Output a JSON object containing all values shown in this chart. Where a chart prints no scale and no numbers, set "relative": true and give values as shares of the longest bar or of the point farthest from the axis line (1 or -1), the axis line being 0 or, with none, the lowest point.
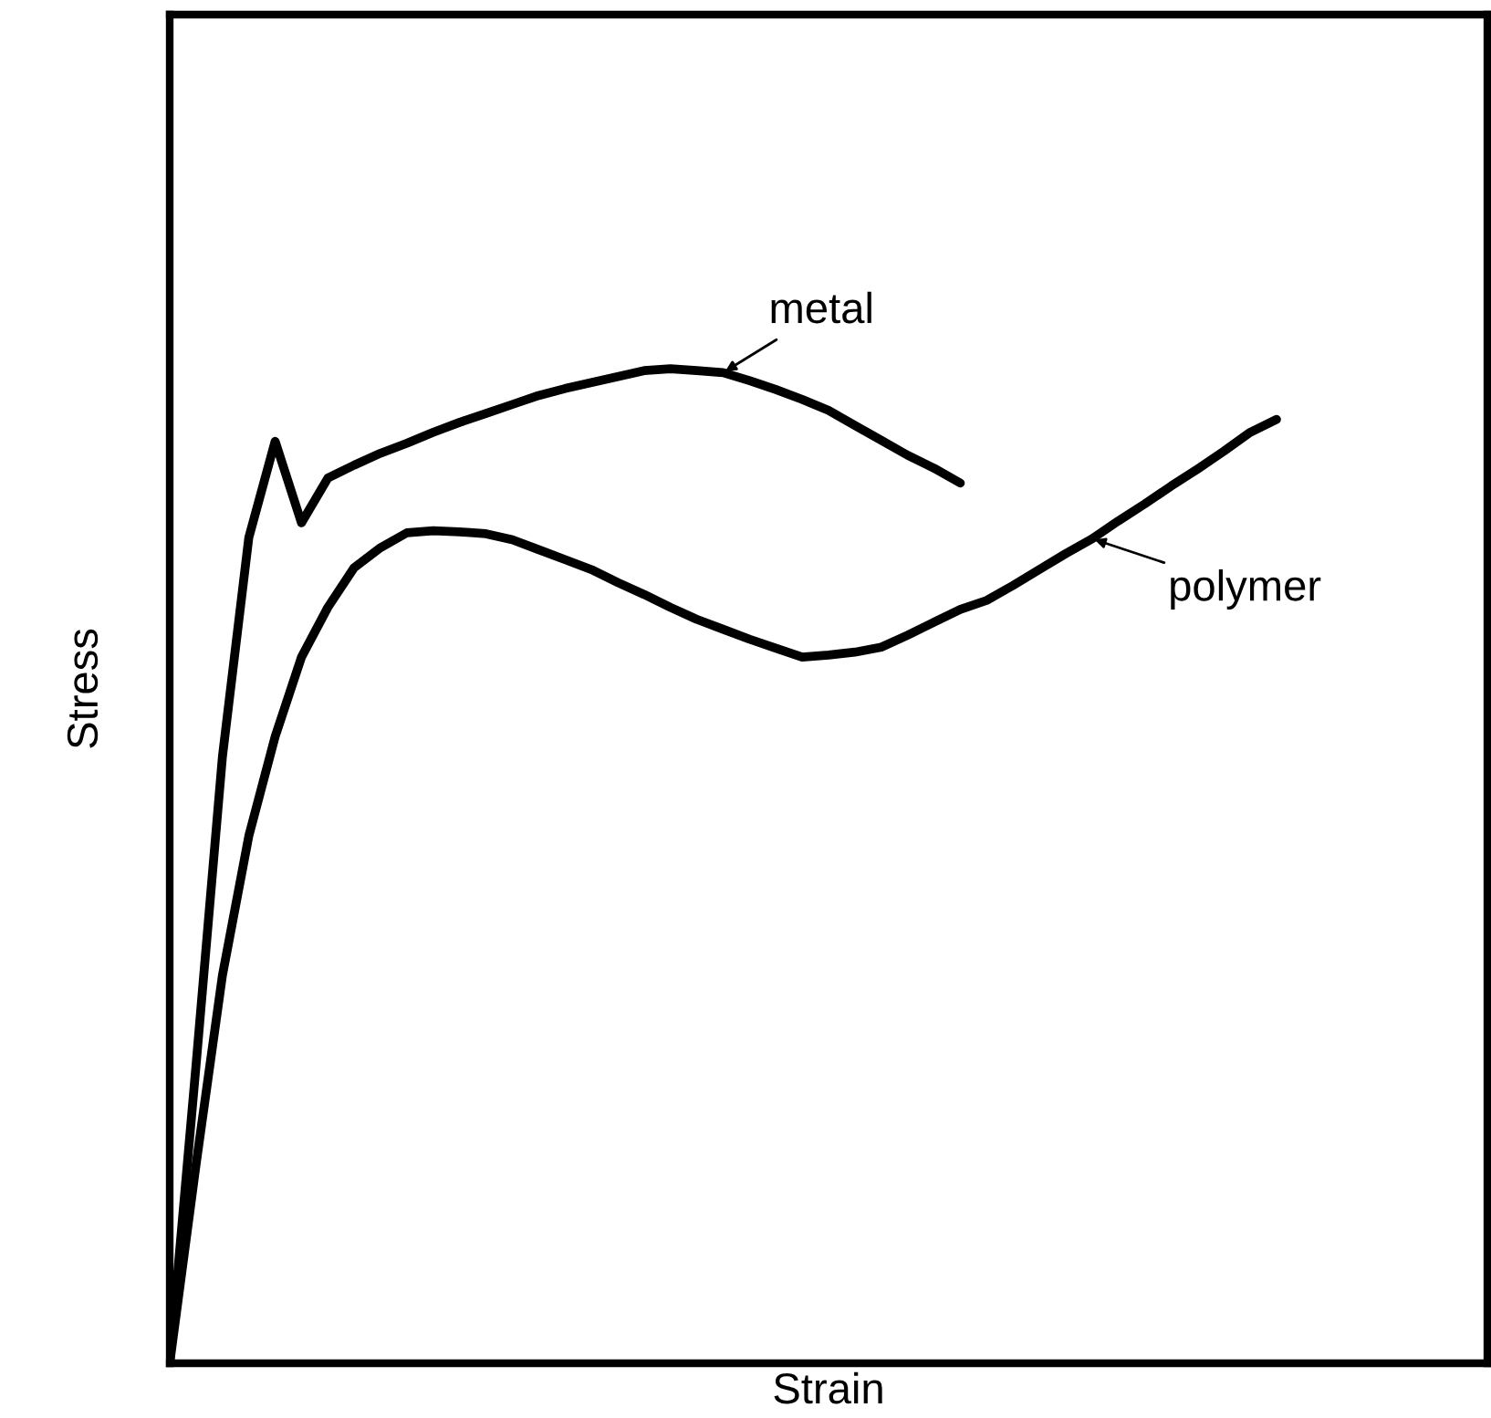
{
  "chart_data": {
    "type": "line",
    "relative": true,
    "xlabel": "Strain",
    "ylabel": "Stress",
    "marker": "none",
    "line_style": "solid",
    "categories": [
      null,
      null,
      null,
      null,
      null,
      null,
      null,
      null,
      null,
      null,
      null,
      null,
      null,
      null,
      null,
      null,
      null,
      null,
      null,
      null,
      null,
      null,
      null,
      null,
      null,
      null,
      null,
      null,
      null,
      null,
      null,
      null,
      null,
      null,
      null,
      null,
      null,
      null,
      null,
      null,
      null,
      null,
      null,
      null,
      null,
      null,
      null,
      null,
      null,
      null,
      null
    ],
    "series": [
      {
        "name": "metal",
        "color": "#000000",
        "values": [
          0,
          0.3,
          0.61,
          0.83,
          0.927,
          0.845,
          0.89,
          0.903,
          0.915,
          0.925,
          0.936,
          0.946,
          0.955,
          0.964,
          0.973,
          0.98,
          0.986,
          0.992,
          0.998,
          1.0,
          0.998,
          0.996,
          0.988,
          0.979,
          0.969,
          0.958,
          0.943,
          0.928,
          0.913,
          0.9,
          0.885,
          null,
          null,
          null,
          null,
          null,
          null,
          null,
          null,
          null,
          null,
          null,
          null,
          null,
          null,
          null,
          null,
          null,
          null,
          null,
          null
        ]
      },
      {
        "name": "polymer",
        "color": "#000000",
        "values": [
          0,
          0.2,
          0.39,
          0.53,
          0.63,
          0.71,
          0.76,
          0.8,
          0.82,
          0.835,
          0.837,
          0.836,
          0.834,
          0.828,
          0.818,
          0.808,
          0.798,
          0.785,
          0.773,
          0.76,
          0.748,
          0.738,
          0.728,
          0.719,
          0.71,
          0.712,
          0.715,
          0.72,
          0.732,
          0.745,
          0.758,
          0.767,
          0.782,
          0.798,
          0.814,
          0.829,
          0.847,
          0.864,
          0.882,
          0.899,
          0.917,
          0.936,
          0.949,
          null,
          null,
          null,
          null,
          null,
          null,
          null,
          null
        ]
      }
    ]
  }
}
